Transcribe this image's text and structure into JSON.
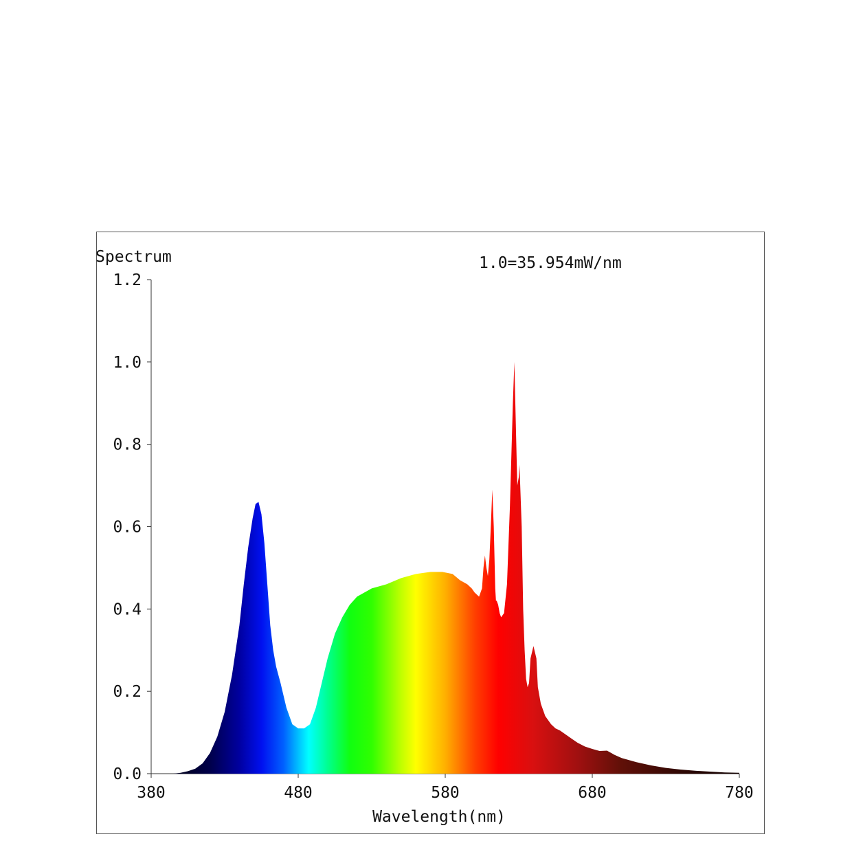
{
  "chart_data": {
    "type": "area",
    "title": "Spectrum",
    "annotation": "1.0=35.954mW/nm",
    "xlabel": "Wavelength(nm)",
    "ylabel": "",
    "xlim": [
      380,
      780
    ],
    "ylim": [
      0,
      1.2
    ],
    "x_ticks": [
      "380",
      "480",
      "580",
      "680",
      "780"
    ],
    "y_ticks": [
      "0.0",
      "0.2",
      "0.4",
      "0.6",
      "0.8",
      "1.0",
      "1.2"
    ],
    "fill": "wavelength-color gradient",
    "grid": false,
    "series": [
      {
        "x": [
          380,
          395,
          400,
          405,
          410,
          415,
          420,
          425,
          430,
          435,
          440,
          443,
          446,
          449,
          451,
          453,
          455,
          457,
          459,
          461,
          463,
          465,
          468,
          472,
          476,
          480,
          484,
          488,
          492,
          496,
          500,
          505,
          510,
          515,
          520,
          525,
          530,
          535,
          540,
          550,
          560,
          570,
          578,
          585,
          590,
          595,
          598,
          600,
          603,
          605,
          606,
          607,
          608,
          609,
          610,
          611,
          612,
          613,
          614,
          614.5,
          615,
          616,
          617,
          618,
          620,
          622,
          624,
          626,
          627,
          628,
          629,
          630,
          630.5,
          631,
          632,
          632.5,
          633,
          634,
          635,
          636,
          637,
          638,
          640,
          642,
          643,
          644,
          645,
          646,
          647,
          648,
          650,
          652,
          655,
          658,
          662,
          666,
          670,
          675,
          680,
          685,
          690,
          693,
          695,
          700,
          710,
          720,
          730,
          740,
          750,
          760,
          770,
          780
        ],
        "y": [
          0.0,
          0.0,
          0.002,
          0.006,
          0.012,
          0.025,
          0.05,
          0.09,
          0.15,
          0.24,
          0.36,
          0.46,
          0.55,
          0.62,
          0.655,
          0.66,
          0.63,
          0.56,
          0.46,
          0.36,
          0.3,
          0.26,
          0.22,
          0.16,
          0.12,
          0.11,
          0.11,
          0.12,
          0.16,
          0.22,
          0.28,
          0.34,
          0.38,
          0.41,
          0.43,
          0.44,
          0.45,
          0.455,
          0.46,
          0.475,
          0.485,
          0.49,
          0.49,
          0.485,
          0.47,
          0.46,
          0.45,
          0.44,
          0.43,
          0.45,
          0.5,
          0.53,
          0.5,
          0.48,
          0.52,
          0.6,
          0.69,
          0.6,
          0.45,
          0.42,
          0.42,
          0.41,
          0.39,
          0.38,
          0.39,
          0.46,
          0.65,
          0.9,
          1.0,
          0.85,
          0.7,
          0.72,
          0.75,
          0.7,
          0.6,
          0.5,
          0.4,
          0.3,
          0.23,
          0.21,
          0.22,
          0.28,
          0.31,
          0.28,
          0.21,
          0.19,
          0.17,
          0.16,
          0.15,
          0.14,
          0.13,
          0.12,
          0.11,
          0.105,
          0.095,
          0.085,
          0.075,
          0.066,
          0.06,
          0.055,
          0.056,
          0.05,
          0.046,
          0.038,
          0.028,
          0.02,
          0.014,
          0.01,
          0.007,
          0.005,
          0.003,
          0.002
        ]
      }
    ]
  }
}
